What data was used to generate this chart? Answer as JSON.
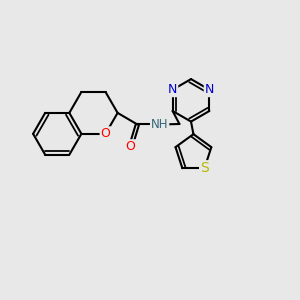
{
  "background_color": "#e8e8e8",
  "bond_color": "#000000",
  "atom_colors": {
    "O": "#ff0000",
    "N_pyrazine": "#0000cc",
    "N_amide": "#336677",
    "S": "#b8b800",
    "C": "#000000"
  },
  "bond_width": 1.5,
  "figsize": [
    3.0,
    3.0
  ],
  "dpi": 100,
  "xlim": [
    0,
    10
  ],
  "ylim": [
    0,
    10
  ]
}
